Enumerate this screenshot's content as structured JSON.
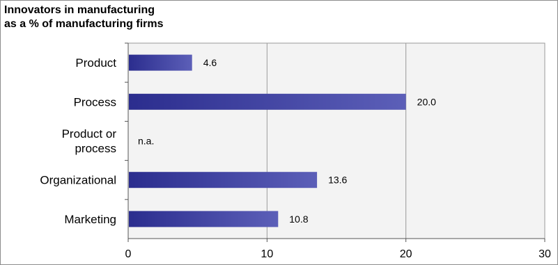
{
  "chart_data": {
    "type": "bar",
    "orientation": "horizontal",
    "title_lines": [
      "Innovators in manufacturing",
      "as a % of manufacturing firms"
    ],
    "categories": [
      {
        "label": [
          "Product"
        ],
        "value": 4.6,
        "value_label": "4.6"
      },
      {
        "label": [
          "Process"
        ],
        "value": 20.0,
        "value_label": "20.0"
      },
      {
        "label": [
          "Product or",
          "process"
        ],
        "value": null,
        "value_label": "n.a."
      },
      {
        "label": [
          "Organizational"
        ],
        "value": 13.6,
        "value_label": "13.6"
      },
      {
        "label": [
          "Marketing"
        ],
        "value": 10.8,
        "value_label": "10.8"
      }
    ],
    "xlim": [
      0,
      30
    ],
    "xticks": [
      "0",
      "10",
      "20",
      "30"
    ],
    "grid": true,
    "xlabel": "",
    "ylabel": "",
    "colors": {
      "bar_dark": "#2b2d8e",
      "bar_light": "#5c5fb8",
      "plot_background": "#f3f3f3",
      "grid": "#9a9a9a"
    }
  }
}
